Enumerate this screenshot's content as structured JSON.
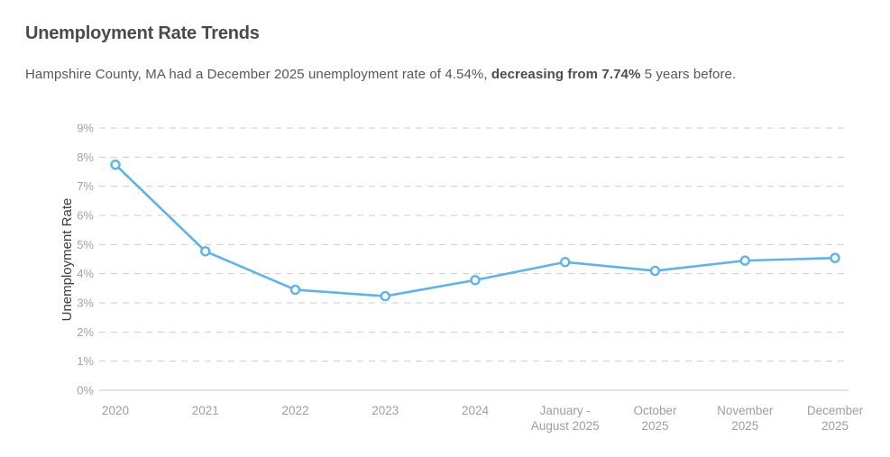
{
  "header": {
    "title": "Unemployment Rate Trends",
    "subtitle_parts": [
      {
        "text": "Hampshire County, MA had a December 2025 unemployment rate of 4.54%, ",
        "bold": false
      },
      {
        "text": "decreasing from 7.74%",
        "bold": true
      },
      {
        "text": " 5 years before.",
        "bold": false
      }
    ]
  },
  "chart_data": {
    "type": "line",
    "title": "Unemployment Rate Trends",
    "xlabel": "",
    "ylabel": "Unemployment Rate",
    "categories": [
      "2020",
      "2021",
      "2022",
      "2023",
      "2024",
      "January - August 2025",
      "October 2025",
      "November 2025",
      "December 2025"
    ],
    "tick_labels_multiline": [
      [
        "2020"
      ],
      [
        "2021"
      ],
      [
        "2022"
      ],
      [
        "2023"
      ],
      [
        "2024"
      ],
      [
        "January -",
        "August 2025"
      ],
      [
        "October",
        "2025"
      ],
      [
        "November",
        "2025"
      ],
      [
        "December",
        "2025"
      ]
    ],
    "series": [
      {
        "name": "Unemployment Rate",
        "values": [
          7.74,
          4.77,
          3.45,
          3.23,
          3.78,
          4.4,
          4.1,
          4.45,
          4.54
        ]
      }
    ],
    "ylim": [
      0,
      9
    ],
    "yticks": [
      0,
      1,
      2,
      3,
      4,
      5,
      6,
      7,
      8,
      9
    ],
    "ytick_format": "{v}%",
    "grid": true,
    "grid_style": "dashed",
    "legend": "none",
    "colors": {
      "line": "#5cb3f0",
      "point_fill": "#ffffff",
      "grid": "#cccccc",
      "axis_line": "#c4c4c4",
      "tick_label": "#a3a3a3",
      "axis_title": "#3c3c3c"
    }
  }
}
